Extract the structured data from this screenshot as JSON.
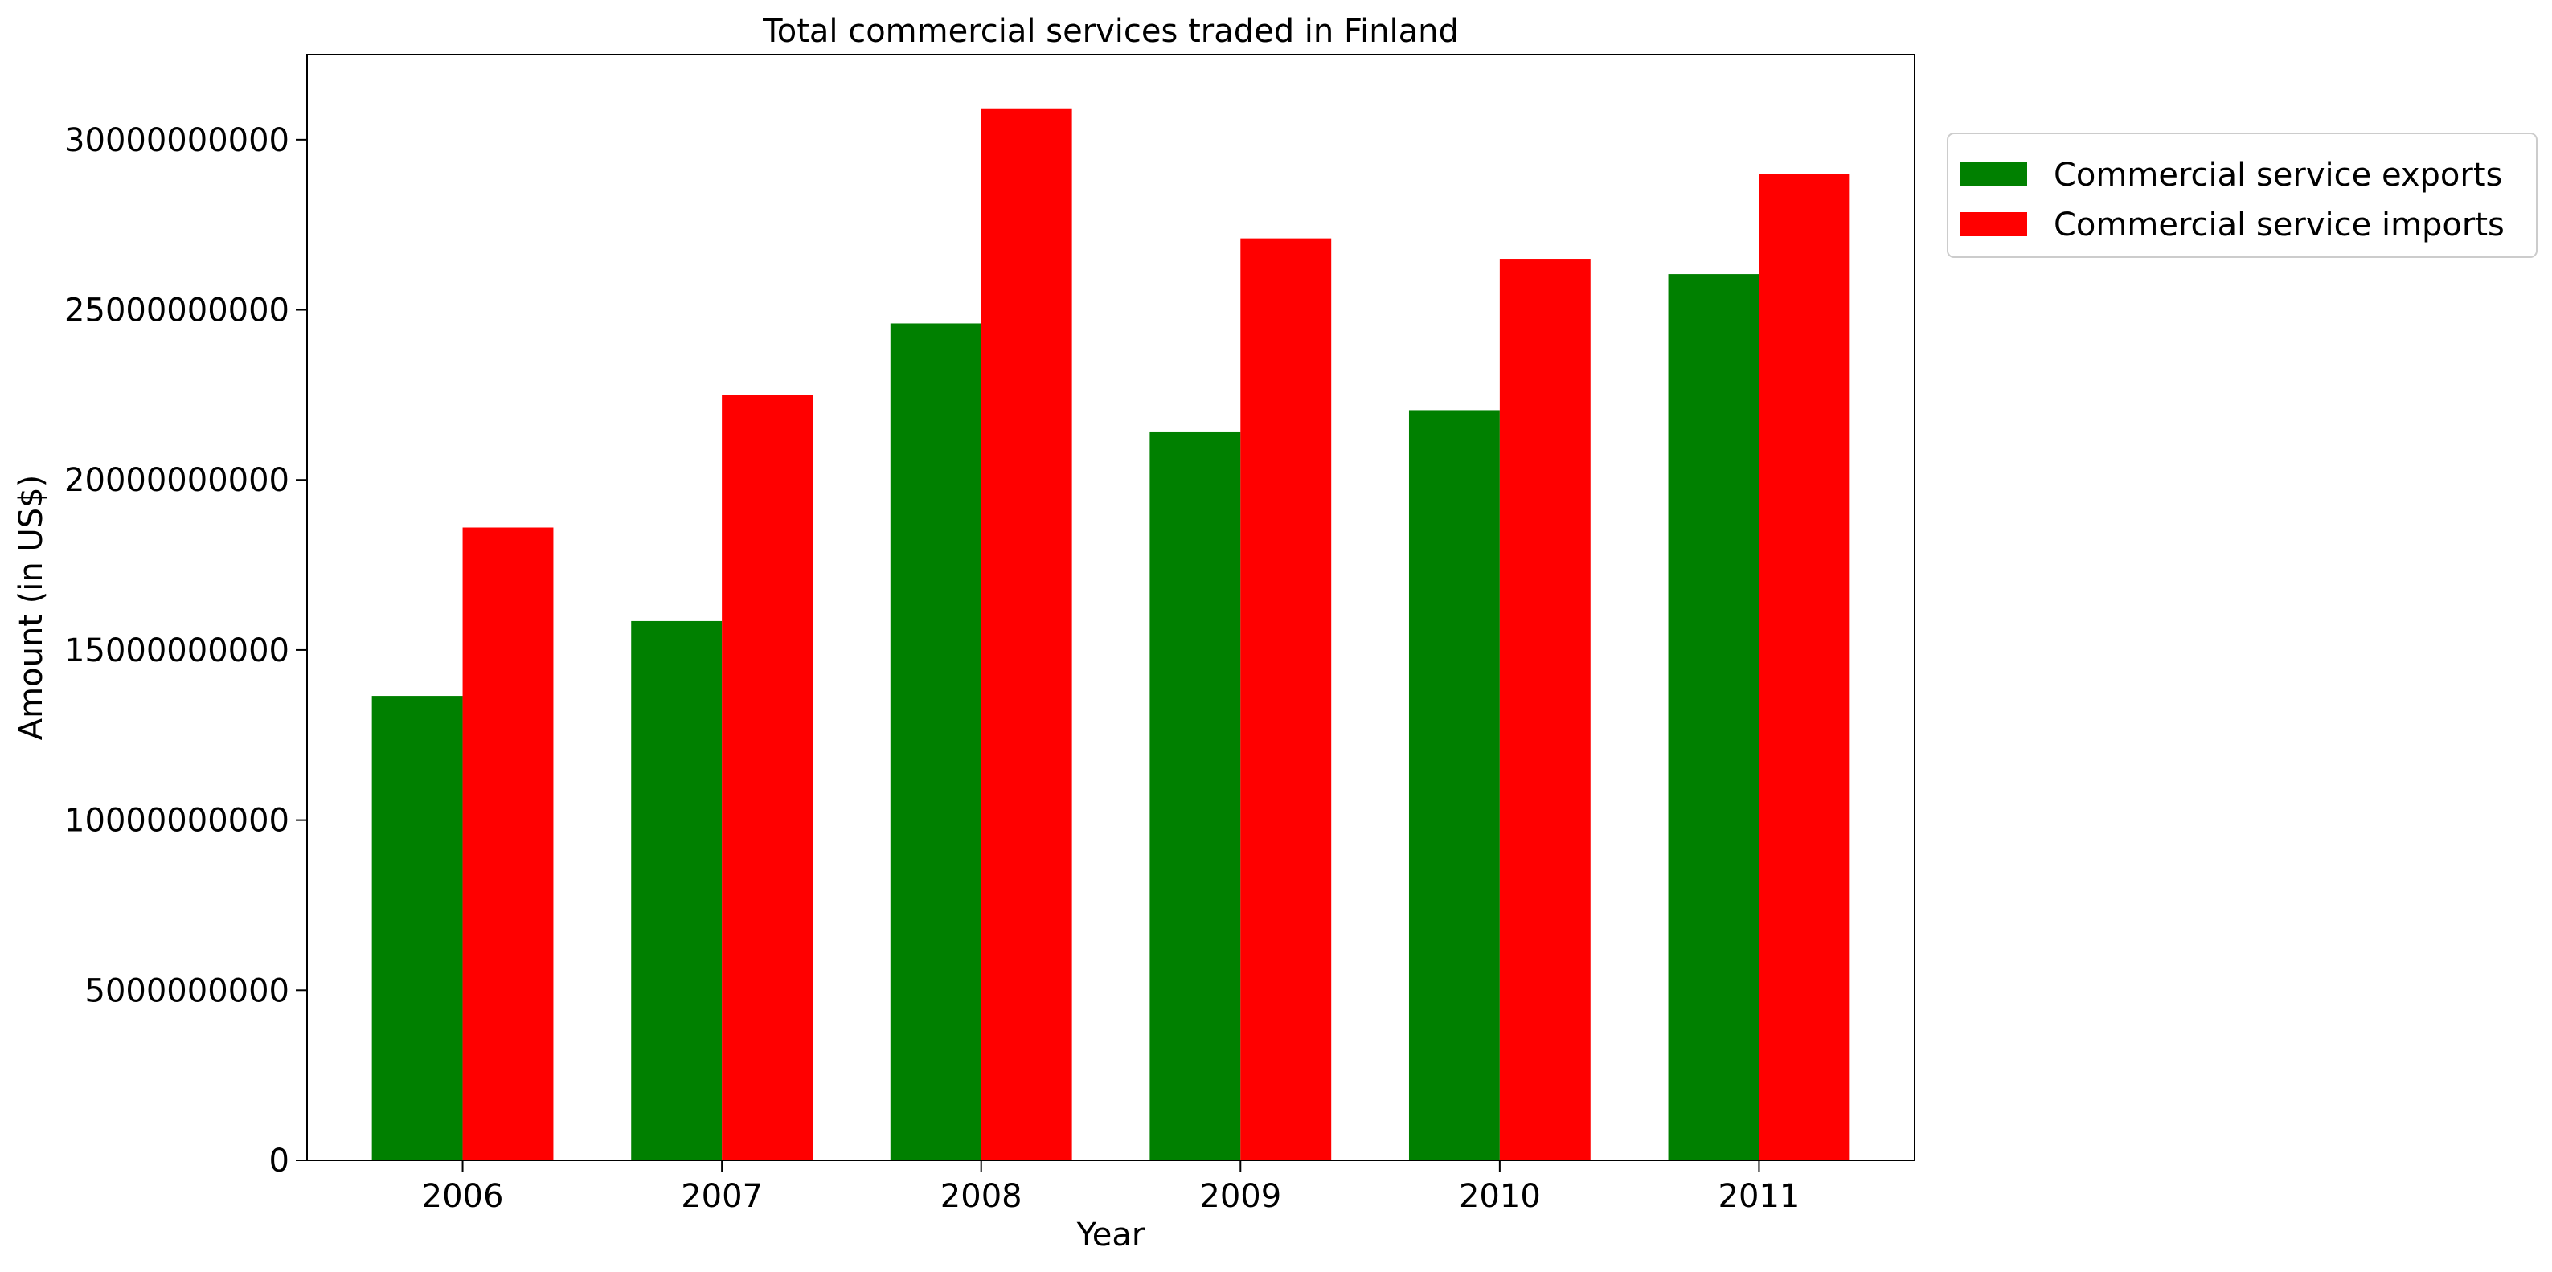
{
  "chart_data": {
    "type": "bar",
    "title": "Total commercial services traded in Finland",
    "xlabel": "Year",
    "ylabel": "Amount (in US$)",
    "categories": [
      "2006",
      "2007",
      "2008",
      "2009",
      "2010",
      "2011"
    ],
    "series": [
      {
        "name": "Commercial service exports",
        "color": "#008000",
        "values": [
          13650000000,
          15850000000,
          24600000000,
          21400000000,
          22050000000,
          26050000000
        ]
      },
      {
        "name": "Commercial service imports",
        "color": "#ff0000",
        "values": [
          18600000000,
          22500000000,
          30900000000,
          27100000000,
          26500000000,
          29000000000
        ]
      }
    ],
    "ylim": [
      0,
      32500000000
    ],
    "yticks": [
      0,
      5000000000,
      10000000000,
      15000000000,
      20000000000,
      25000000000,
      30000000000
    ],
    "ytick_labels": [
      "0",
      "5000000000",
      "10000000000",
      "15000000000",
      "20000000000",
      "25000000000",
      "30000000000"
    ],
    "grid": false,
    "legend_position": "upper-right-outside"
  }
}
